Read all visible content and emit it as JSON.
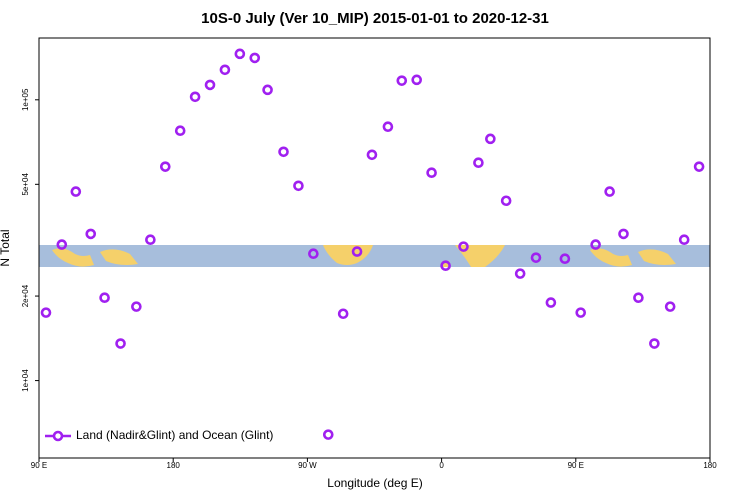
{
  "chart_data": {
    "type": "scatter",
    "title": "10S-0 July (Ver 10_MIP)   2015-01-01 to 2020-12-31",
    "xlabel": "Longitude (deg E)",
    "ylabel": "N Total",
    "xlim": [
      90,
      540
    ],
    "xticks": [
      {
        "value": 90,
        "label": "90 E"
      },
      180,
      {
        "value": 270,
        "label": "90 W"
      },
      {
        "value": 360,
        "label": "0"
      },
      {
        "value": 450,
        "label": "90 E"
      },
      {
        "value": 540,
        "label": "180"
      }
    ],
    "ylim": [
      5300,
      166000
    ],
    "yscale": "log",
    "yticks": [
      {
        "value": 10000,
        "label": "1e+04"
      },
      {
        "value": 20000,
        "label": "2e+04"
      },
      {
        "value": 50000,
        "label": "5e+04"
      },
      {
        "value": 100000,
        "label": "1e+05"
      }
    ],
    "legend": "bottom-left",
    "series": [
      {
        "name": "Land (Nadir&Glint) and Ocean (Glint)",
        "color": "#a020f0",
        "x": [
          94.7,
          105.3,
          114.7,
          124.7,
          134,
          144.7,
          155.3,
          164.7,
          174.7,
          184.7,
          194.7,
          204.7,
          214.7,
          224.7,
          234.7,
          243.3,
          254,
          264,
          274,
          284,
          294,
          303.3,
          313.3,
          324,
          333.3,
          343.3,
          353.3,
          362.7,
          374.7,
          384.7,
          392.7,
          403.3,
          412.7,
          423.3,
          433.3,
          442.7,
          453.3,
          463.3,
          472.7,
          482,
          492,
          502.7,
          513.3,
          522.7,
          532.7
        ],
        "values": [
          17460,
          30500,
          47100,
          33300,
          19730,
          13550,
          18340,
          31750,
          57800,
          77600,
          102500,
          113000,
          127900,
          145800,
          141000,
          108500,
          65300,
          49400,
          28300,
          6420,
          17300,
          28800,
          63700,
          80200,
          117000,
          117800,
          55000,
          25650,
          30000,
          59700,
          72600,
          43700,
          24040,
          27400,
          18960,
          27170,
          17460,
          30500,
          47100,
          33300,
          19730,
          13550,
          18340,
          31750,
          57800
        ]
      }
    ]
  }
}
